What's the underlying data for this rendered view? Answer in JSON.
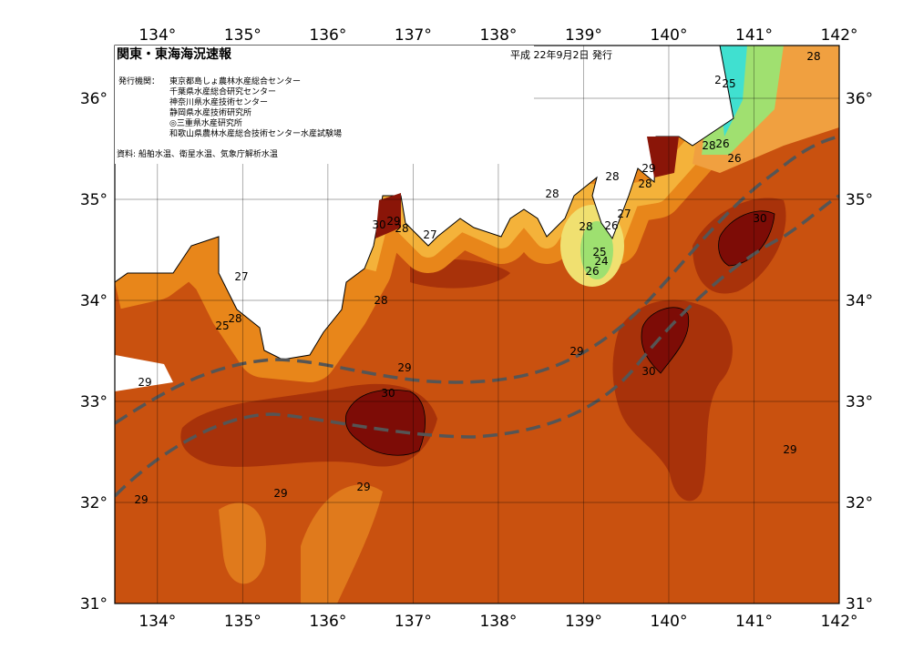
{
  "header": {
    "title": "関東・東海海況速報",
    "issue_date": "平成 22年9月2日 発行"
  },
  "issuers": {
    "label": "発行機関：",
    "names": [
      "東京都島しょ農林水産総合センター",
      "千葉県水産総合研究センター",
      "神奈川県水産技術センター",
      "静岡県水産技術研究所",
      "◎三重県水産研究所",
      "和歌山県農林水産総合技術センター水産試験場"
    ]
  },
  "source": "資料: 船舶水温、衛星水温、気象庁解析水温",
  "axes": {
    "lon_labels": [
      "134°",
      "135°",
      "136°",
      "137°",
      "138°",
      "139°",
      "140°",
      "141°",
      "142°"
    ],
    "lat_labels": [
      "31°",
      "32°",
      "33°",
      "34°",
      "35°",
      "36°"
    ]
  },
  "contour_labels": [
    "28",
    "2",
    "25",
    "28",
    "26",
    "26",
    "29",
    "28",
    "28",
    "28",
    "27",
    "28",
    "26",
    "30",
    "29",
    "28",
    "27",
    "25",
    "24",
    "26",
    "27",
    "28",
    "28",
    "25",
    "29",
    "29",
    "30",
    "29",
    "30",
    "30",
    "29",
    "29",
    "29",
    "29"
  ]
}
